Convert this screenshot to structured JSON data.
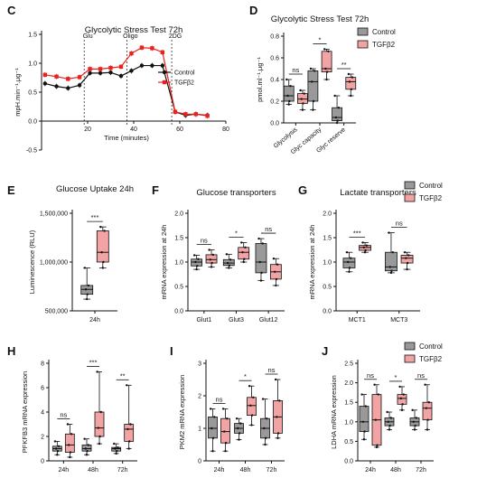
{
  "colors": {
    "control": "#999999",
    "tgfb2": "#f2a3a3",
    "control_line": "#111111",
    "tgfb2_line": "#e8221f"
  },
  "legend_labels": {
    "control": "Control",
    "tgfb2": "TGFβ2"
  },
  "chart_data": [
    {
      "panel": "C",
      "type": "line",
      "title": "Glycolytic Stress Test 72h",
      "xlabel": "Time (minutes)",
      "ylabel": "mpH.min⁻¹.μg⁻¹",
      "xlim": [
        0,
        80
      ],
      "ylim": [
        -0.5,
        1.5
      ],
      "xticks": [
        20,
        40,
        60,
        80
      ],
      "yticks": [
        -0.5,
        0.0,
        0.5,
        1.0,
        1.5
      ],
      "markers": [
        {
          "x": 18.5,
          "label": "Glu"
        },
        {
          "x": 37,
          "label": "Oligo"
        },
        {
          "x": 56.5,
          "label": "2DG"
        }
      ],
      "legend": "top-right",
      "series": [
        {
          "name": "Control",
          "x": [
            1.5,
            6.5,
            11.5,
            16.5,
            21,
            25.5,
            30,
            34.5,
            39,
            43.5,
            48,
            52.5,
            58,
            62.5,
            67,
            72
          ],
          "y": [
            0.65,
            0.6,
            0.57,
            0.62,
            0.83,
            0.83,
            0.84,
            0.78,
            0.87,
            0.96,
            0.96,
            0.96,
            0.16,
            0.1,
            0.12,
            0.1
          ]
        },
        {
          "name": "TGFβ2",
          "x": [
            1.5,
            6.5,
            11.5,
            16.5,
            21,
            25.5,
            30,
            34.5,
            39,
            43.5,
            48,
            52.5,
            58,
            62.5,
            67,
            72
          ],
          "y": [
            0.8,
            0.77,
            0.73,
            0.76,
            0.9,
            0.9,
            0.92,
            0.94,
            1.17,
            1.27,
            1.26,
            1.19,
            0.16,
            0.12,
            0.12,
            0.09
          ]
        }
      ]
    },
    {
      "panel": "D",
      "type": "box",
      "title": "Glycolytic Stress Test 72h",
      "ylabel": "pmol.ml⁻¹.μg⁻¹",
      "ylim": [
        0,
        0.8
      ],
      "yticks": [
        0.0,
        0.2,
        0.4,
        0.6,
        0.8
      ],
      "categories": [
        "Glycolysis",
        "Glyc capacity",
        "Glyc reserve"
      ],
      "significance": [
        "ns",
        "*",
        "**"
      ],
      "legend": "top-right",
      "series": [
        {
          "name": "Control",
          "boxes": [
            [
              0.17,
              0.2,
              0.25,
              0.34,
              0.4
            ],
            [
              0.12,
              0.2,
              0.38,
              0.48,
              0.5
            ],
            [
              0.0,
              0.02,
              0.05,
              0.14,
              0.25
            ]
          ]
        },
        {
          "name": "TGFβ2",
          "boxes": [
            [
              0.12,
              0.18,
              0.22,
              0.27,
              0.3
            ],
            [
              0.4,
              0.47,
              0.5,
              0.66,
              0.68
            ],
            [
              0.25,
              0.31,
              0.38,
              0.42,
              0.45
            ]
          ]
        }
      ]
    },
    {
      "panel": "E",
      "type": "box",
      "title": "Glucose Uptake 24h",
      "ylabel": "Luminescence (RLU)",
      "ylim": [
        500000,
        1500000
      ],
      "yticks": [
        500000,
        1000000,
        1500000
      ],
      "ytick_labels": [
        "500,000",
        "1,000,000",
        "1,500,000"
      ],
      "categories": [
        "24h"
      ],
      "significance": [
        "***"
      ],
      "series": [
        {
          "name": "Control",
          "boxes": [
            [
              620000,
              670000,
              720000,
              760000,
              940000
            ]
          ]
        },
        {
          "name": "TGFβ2",
          "boxes": [
            [
              940000,
              1000000,
              1100000,
              1320000,
              1360000
            ]
          ]
        }
      ]
    },
    {
      "panel": "F",
      "type": "box",
      "title": "Glucose transporters",
      "ylabel": "mRNA expression at 24h",
      "ylim": [
        0,
        2.0
      ],
      "yticks": [
        0.0,
        0.5,
        1.0,
        1.5,
        2.0
      ],
      "categories": [
        "Glut1",
        "Glut3",
        "Glut12"
      ],
      "significance": [
        "ns",
        "*",
        "ns"
      ],
      "series": [
        {
          "name": "Control",
          "boxes": [
            [
              0.85,
              0.92,
              1.0,
              1.06,
              1.14
            ],
            [
              0.88,
              0.93,
              0.98,
              1.05,
              1.16
            ],
            [
              0.62,
              0.78,
              1.0,
              1.38,
              1.48
            ]
          ]
        },
        {
          "name": "TGFβ2",
          "boxes": [
            [
              0.9,
              0.98,
              1.05,
              1.15,
              1.25
            ],
            [
              1.0,
              1.06,
              1.2,
              1.3,
              1.4
            ],
            [
              0.52,
              0.65,
              0.8,
              0.95,
              1.07
            ]
          ]
        }
      ]
    },
    {
      "panel": "G",
      "type": "box",
      "title": "Lactate transporters",
      "ylabel": "mRNA expression at 24h",
      "ylim": [
        0,
        2.0
      ],
      "yticks": [
        0.0,
        0.5,
        1.0,
        1.5,
        2.0
      ],
      "categories": [
        "MCT1",
        "MCT3"
      ],
      "significance": [
        "***",
        "ns"
      ],
      "legend": "top-right",
      "series": [
        {
          "name": "Control",
          "boxes": [
            [
              0.8,
              0.88,
              1.0,
              1.08,
              1.2
            ],
            [
              0.78,
              0.82,
              0.9,
              1.2,
              1.6
            ]
          ]
        },
        {
          "name": "TGFβ2",
          "boxes": [
            [
              1.2,
              1.24,
              1.3,
              1.34,
              1.4
            ],
            [
              0.85,
              0.98,
              1.08,
              1.14,
              1.2
            ]
          ]
        }
      ]
    },
    {
      "panel": "H",
      "type": "box",
      "ylabel": "PFKFB3 mRNA expression",
      "ylim": [
        0,
        8
      ],
      "yticks": [
        0,
        2,
        4,
        6,
        8
      ],
      "categories": [
        "24h",
        "48h",
        "72h"
      ],
      "significance": [
        "ns",
        "***",
        "**"
      ],
      "series": [
        {
          "name": "Control",
          "boxes": [
            [
              0.5,
              0.8,
              1.0,
              1.2,
              1.6
            ],
            [
              0.5,
              0.8,
              1.0,
              1.3,
              1.8
            ],
            [
              0.6,
              0.8,
              1.0,
              1.1,
              1.4
            ]
          ]
        },
        {
          "name": "TGFβ2",
          "boxes": [
            [
              0.3,
              0.7,
              1.3,
              2.2,
              3.0
            ],
            [
              1.4,
              2.0,
              2.7,
              4.0,
              7.3
            ],
            [
              1.0,
              1.6,
              2.6,
              3.0,
              6.2
            ]
          ]
        }
      ]
    },
    {
      "panel": "I",
      "type": "box",
      "ylabel": "PKM2 mRNA expression",
      "ylim": [
        0,
        3
      ],
      "yticks": [
        0,
        1,
        2,
        3
      ],
      "categories": [
        "24h",
        "48h",
        "72h"
      ],
      "significance": [
        "ns",
        "*",
        "ns"
      ],
      "series": [
        {
          "name": "Control",
          "boxes": [
            [
              0.3,
              0.7,
              1.0,
              1.35,
              1.6
            ],
            [
              0.65,
              0.85,
              1.0,
              1.15,
              1.3
            ],
            [
              0.5,
              0.7,
              1.0,
              1.3,
              1.9
            ]
          ]
        },
        {
          "name": "TGFβ2",
          "boxes": [
            [
              0.3,
              0.55,
              0.9,
              1.3,
              1.6
            ],
            [
              1.1,
              1.4,
              1.7,
              1.95,
              2.3
            ],
            [
              0.7,
              0.85,
              1.35,
              1.85,
              2.5
            ]
          ]
        }
      ]
    },
    {
      "panel": "J",
      "type": "box",
      "ylabel": "LDHA mRNA expression",
      "ylim": [
        0,
        2.5
      ],
      "yticks": [
        0.0,
        0.5,
        1.0,
        1.5,
        2.0,
        2.5
      ],
      "categories": [
        "24h",
        "48h",
        "72h"
      ],
      "significance": [
        "ns",
        "*",
        "ns"
      ],
      "legend": "top-right",
      "series": [
        {
          "name": "Control",
          "boxes": [
            [
              0.55,
              0.75,
              1.0,
              1.4,
              1.7
            ],
            [
              0.8,
              0.9,
              1.0,
              1.1,
              1.25
            ],
            [
              0.8,
              0.9,
              1.0,
              1.1,
              1.3
            ]
          ]
        },
        {
          "name": "TGFβ2",
          "boxes": [
            [
              0.35,
              0.4,
              1.05,
              1.7,
              1.95
            ],
            [
              1.3,
              1.45,
              1.6,
              1.7,
              1.9
            ],
            [
              0.8,
              1.05,
              1.35,
              1.5,
              1.95
            ]
          ]
        }
      ]
    }
  ]
}
